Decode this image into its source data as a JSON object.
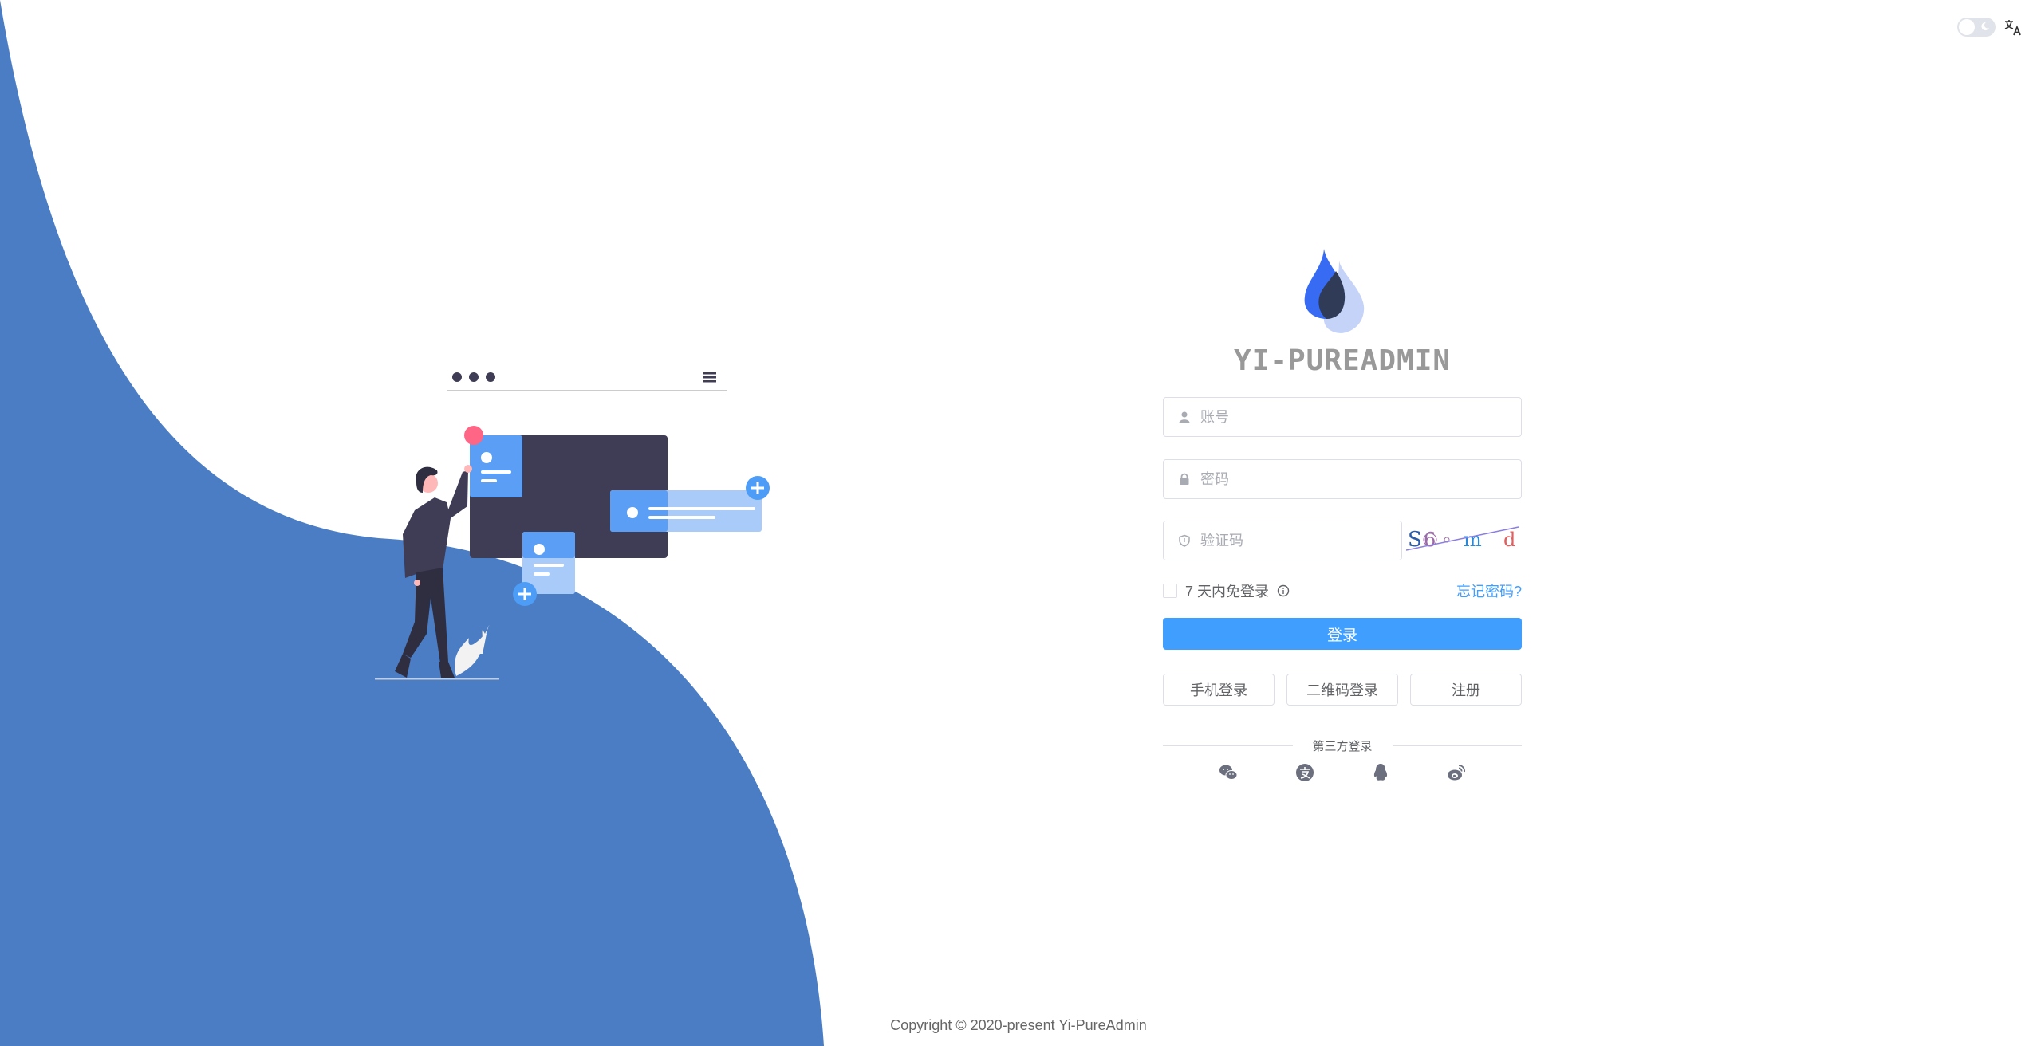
{
  "brand": {
    "title": "YI-PUREADMIN",
    "logo_colors": [
      "#386bf3",
      "#c5d3f8",
      "#2f3b57"
    ]
  },
  "theme": {
    "primary": "#409eff",
    "wave": "#4b7dc4"
  },
  "topbar": {
    "theme_toggle_icon": "moon-icon",
    "language_icon": "translate-icon",
    "dark_mode": false
  },
  "form": {
    "username_placeholder": "账号",
    "password_placeholder": "密码",
    "captcha_placeholder": "验证码",
    "captcha_text": "S6°md",
    "remember_label": "7 天内免登录",
    "forgot_label": "忘记密码?",
    "login_label": "登录",
    "alt_buttons": [
      "手机登录",
      "二维码登录",
      "注册"
    ],
    "third_party_label": "第三方登录",
    "third_party_icons": [
      "wechat-icon",
      "alipay-icon",
      "qq-icon",
      "weibo-icon"
    ]
  },
  "footer": {
    "copyright": "Copyright © 2020-present Yi-PureAdmin"
  }
}
